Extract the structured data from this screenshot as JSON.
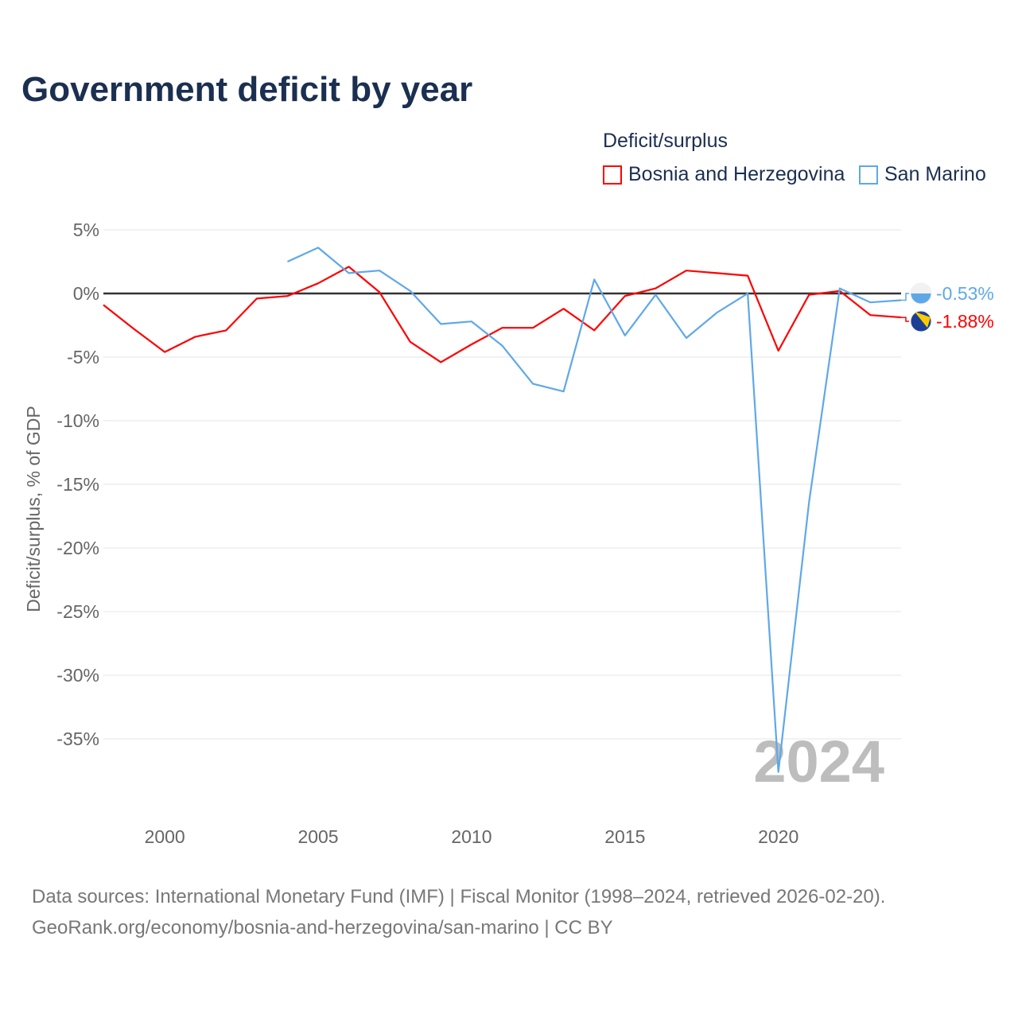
{
  "title": "Government deficit by year",
  "legend": {
    "title": "Deficit/surplus",
    "items": [
      "Bosnia and Herzegovina",
      "San Marino"
    ]
  },
  "source": {
    "line1": "Data sources: International Monetary Fund (IMF) | Fiscal Monitor (1998–2024, retrieved 2026-02-20).",
    "line2": "GeoRank.org/economy/bosnia-and-herzegovina/san-marino | CC BY"
  },
  "chart_data": {
    "type": "line",
    "title": "Government deficit by year",
    "xlabel": "",
    "ylabel": "Deficit/surplus, % of GDP",
    "xlim": [
      1998,
      2024
    ],
    "ylim": [
      -40,
      6
    ],
    "x_ticks": [
      2000,
      2005,
      2010,
      2015,
      2020
    ],
    "y_ticks": [
      5,
      0,
      -5,
      -10,
      -15,
      -20,
      -25,
      -30,
      -35
    ],
    "y_tick_labels": [
      "5%",
      "0%",
      "-5%",
      "-10%",
      "-15%",
      "-20%",
      "-25%",
      "-30%",
      "-35%"
    ],
    "watermark_year": "2024",
    "series": [
      {
        "name": "Bosnia and Herzegovina",
        "color": "#ff0000",
        "end_label": "-1.88%",
        "x": [
          1998,
          1999,
          2000,
          2001,
          2002,
          2003,
          2004,
          2005,
          2006,
          2007,
          2008,
          2009,
          2010,
          2011,
          2012,
          2013,
          2014,
          2015,
          2016,
          2017,
          2018,
          2019,
          2020,
          2021,
          2022,
          2023,
          2024
        ],
        "values": [
          -0.9,
          -2.8,
          -4.6,
          -3.4,
          -2.9,
          -0.4,
          -0.2,
          0.8,
          2.1,
          0.1,
          -3.8,
          -5.4,
          -4.0,
          -2.7,
          -2.7,
          -1.2,
          -2.9,
          -0.2,
          0.4,
          1.8,
          1.6,
          1.4,
          -4.5,
          -0.1,
          0.2,
          -1.7,
          -1.88
        ]
      },
      {
        "name": "San Marino",
        "color": "#5fa8e8",
        "end_label": "-0.53%",
        "x": [
          2004,
          2005,
          2006,
          2007,
          2008,
          2009,
          2010,
          2011,
          2012,
          2013,
          2014,
          2015,
          2016,
          2017,
          2018,
          2019,
          2020,
          2021,
          2022,
          2023,
          2024
        ],
        "values": [
          2.5,
          3.6,
          1.6,
          1.8,
          0.2,
          -2.4,
          -2.2,
          -4.1,
          -7.1,
          -7.7,
          1.1,
          -3.3,
          -0.1,
          -3.5,
          -1.5,
          0.0,
          -37.6,
          -16.4,
          0.4,
          -0.7,
          -0.53
        ]
      }
    ]
  }
}
